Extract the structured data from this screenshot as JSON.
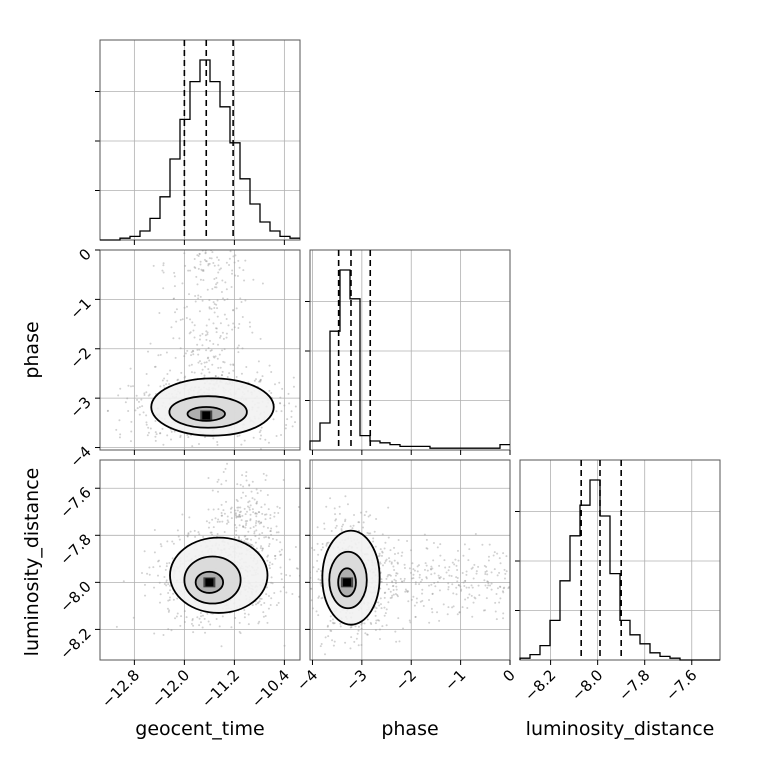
{
  "chart_data": {
    "type": "corner",
    "parameters": [
      "geocent_time",
      "phase",
      "luminosity_distance"
    ],
    "axis_labels": {
      "x": [
        "geocent_time",
        "phase",
        "luminosity_distance"
      ],
      "y": [
        "",
        "phase",
        "luminosity_distance"
      ]
    },
    "ranges": {
      "geocent_time": [
        -13.35,
        -10.15
      ],
      "phase": [
        -4.05,
        0.0
      ],
      "luminosity_distance": [
        -8.33,
        -7.48
      ]
    },
    "ticks": {
      "geocent_time": [
        -12.8,
        -12.0,
        -11.2,
        -10.4
      ],
      "phase": [
        -4,
        -3,
        -2,
        -1,
        0
      ],
      "luminosity_distance": [
        -8.2,
        -8.0,
        -7.8,
        -7.6
      ]
    },
    "tick_labels": {
      "geocent_time": [
        "−12.8",
        "−12.0",
        "−11.2",
        "−10.4"
      ],
      "phase": [
        "−4",
        "−3",
        "−2",
        "−1",
        "0"
      ],
      "luminosity_distance": [
        "−8.2",
        "−8.0",
        "−7.8",
        "−7.6"
      ]
    },
    "quantiles": {
      "geocent_time": [
        -12.0,
        -11.65,
        -11.22
      ],
      "phase": [
        -3.47,
        -3.22,
        -2.83
      ],
      "luminosity_distance": [
        -8.07,
        -7.99,
        -7.9
      ]
    },
    "histograms": {
      "geocent_time": {
        "bin_start": -13.35,
        "bin_width": 0.16,
        "counts": [
          0,
          0,
          1,
          2,
          5,
          12,
          24,
          45,
          67,
          88,
          100,
          88,
          74,
          54,
          34,
          20,
          10,
          5,
          2,
          1
        ]
      },
      "phase": {
        "bin_start": -4.05,
        "bin_width": 0.2025,
        "counts": [
          5,
          15,
          66,
          100,
          84,
          8,
          5,
          4,
          3,
          2,
          2,
          2,
          1,
          1,
          1,
          1,
          1,
          1,
          1,
          3
        ]
      },
      "luminosity_distance": {
        "bin_start": -8.33,
        "bin_width": 0.0425,
        "counts": [
          1,
          3,
          8,
          22,
          44,
          69,
          86,
          100,
          80,
          48,
          22,
          14,
          9,
          4,
          2,
          1,
          0,
          0,
          0,
          0
        ]
      }
    },
    "pairs": [
      {
        "x": "geocent_time",
        "y": "phase",
        "peak": [
          -11.65,
          -3.35
        ],
        "contours": [
          {
            "cx": -11.65,
            "cy": -3.32,
            "rx": 0.3,
            "ry": 0.14
          },
          {
            "cx": -11.62,
            "cy": -3.28,
            "rx": 0.62,
            "ry": 0.32
          },
          {
            "cx": -11.55,
            "cy": -3.18,
            "rx": 0.98,
            "ry": 0.58
          }
        ]
      },
      {
        "x": "geocent_time",
        "y": "luminosity_distance",
        "peak": [
          -11.6,
          -8.0
        ],
        "contours": [
          {
            "cx": -11.6,
            "cy": -8.0,
            "rx": 0.22,
            "ry": 0.045
          },
          {
            "cx": -11.55,
            "cy": -7.99,
            "rx": 0.45,
            "ry": 0.1
          },
          {
            "cx": -11.45,
            "cy": -7.97,
            "rx": 0.78,
            "ry": 0.16
          }
        ]
      },
      {
        "x": "phase",
        "y": "luminosity_distance",
        "peak": [
          -3.3,
          -8.0
        ],
        "contours": [
          {
            "cx": -3.3,
            "cy": -8.0,
            "rx": 0.18,
            "ry": 0.06
          },
          {
            "cx": -3.28,
            "cy": -7.99,
            "rx": 0.38,
            "ry": 0.12
          },
          {
            "cx": -3.22,
            "cy": -7.98,
            "rx": 0.58,
            "ry": 0.2
          }
        ]
      }
    ],
    "grid": true
  }
}
